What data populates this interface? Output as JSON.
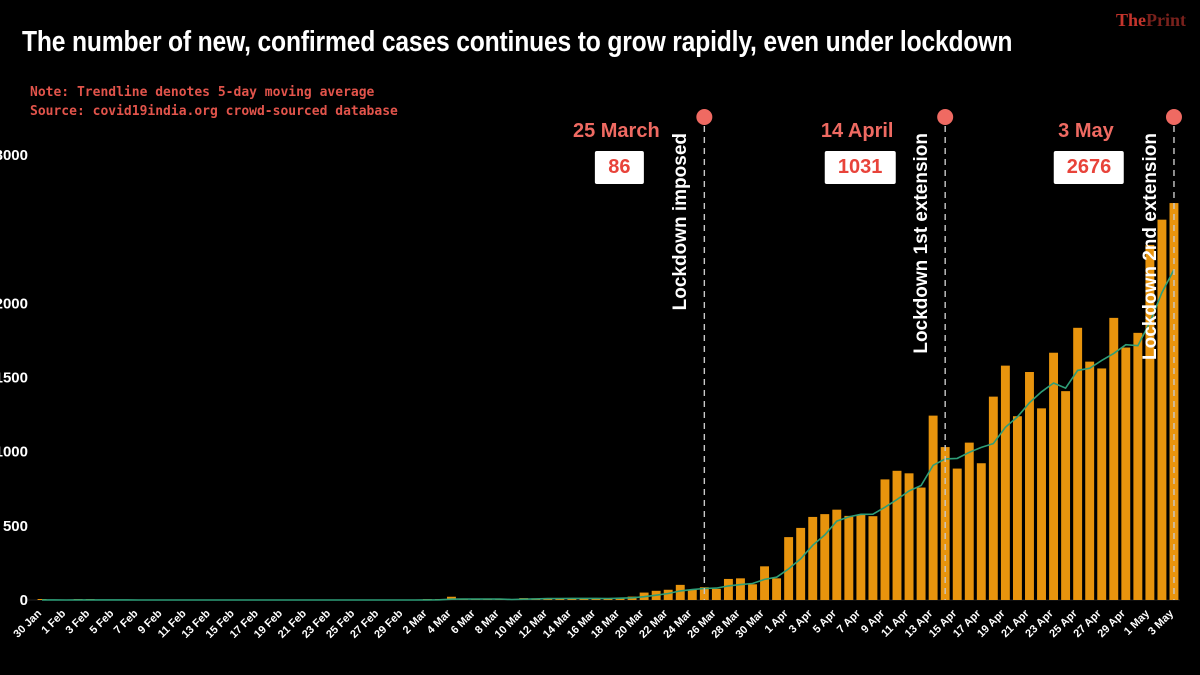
{
  "logo": {
    "part1": "The",
    "part2": "Print"
  },
  "header": {
    "note_line1": "Note: Trendline denotes 5-day moving average",
    "note_line2": "Source: covid19india.org crowd-sourced database"
  },
  "theme": {
    "background": "#000000",
    "text": "#ffffff",
    "accent_red": "#ef6a62",
    "value_red": "#e8433a",
    "note_red": "#e2544b",
    "logo_red": "#c4342c",
    "logo_dark_red": "#7a211c"
  },
  "chart_data": {
    "type": "bar",
    "title": "The number of new, confirmed cases continues to grow rapidly, even under lockdown",
    "xlabel": "",
    "ylabel": "",
    "ylim": [
      0,
      3000
    ],
    "grid": false,
    "legend": "none",
    "y_ticks": [
      3000,
      2000,
      1500,
      1000,
      500,
      0
    ],
    "x_tick_labels": [
      "30 Jan",
      "1 Feb",
      "3 Feb",
      "5 Feb",
      "7 Feb",
      "9 Feb",
      "11 Feb",
      "13 Feb",
      "15 Feb",
      "17 Feb",
      "19 Feb",
      "21 Feb",
      "23 Feb",
      "25 Feb",
      "27 Feb",
      "29 Feb",
      "2 Mar",
      "4 Mar",
      "6 Mar",
      "8 Mar",
      "10 Mar",
      "12 Mar",
      "14 Mar",
      "16 Mar",
      "18 Mar",
      "20 Mar",
      "22 Mar",
      "24 Mar",
      "26 Mar",
      "28 Mar",
      "30 Mar",
      "1 Apr",
      "3 Apr",
      "5 Apr",
      "7 Apr",
      "9 Apr",
      "11 Apr",
      "13 Apr",
      "15 Apr",
      "17 Apr",
      "19 Apr",
      "21 Apr",
      "23 Apr",
      "25 Apr",
      "27 Apr",
      "29 Apr",
      "1 May",
      "3 May"
    ],
    "dates": [
      "30 Jan",
      "31 Jan",
      "1 Feb",
      "2 Feb",
      "3 Feb",
      "4 Feb",
      "5 Feb",
      "6 Feb",
      "7 Feb",
      "8 Feb",
      "9 Feb",
      "10 Feb",
      "11 Feb",
      "12 Feb",
      "13 Feb",
      "14 Feb",
      "15 Feb",
      "16 Feb",
      "17 Feb",
      "18 Feb",
      "19 Feb",
      "20 Feb",
      "21 Feb",
      "22 Feb",
      "23 Feb",
      "24 Feb",
      "25 Feb",
      "26 Feb",
      "27 Feb",
      "28 Feb",
      "29 Feb",
      "1 Mar",
      "2 Mar",
      "3 Mar",
      "4 Mar",
      "5 Mar",
      "6 Mar",
      "7 Mar",
      "8 Mar",
      "9 Mar",
      "10 Mar",
      "11 Mar",
      "12 Mar",
      "13 Mar",
      "14 Mar",
      "15 Mar",
      "16 Mar",
      "17 Mar",
      "18 Mar",
      "19 Mar",
      "20 Mar",
      "21 Mar",
      "22 Mar",
      "23 Mar",
      "24 Mar",
      "25 Mar",
      "26 Mar",
      "27 Mar",
      "28 Mar",
      "29 Mar",
      "30 Mar",
      "31 Mar",
      "1 Apr",
      "2 Apr",
      "3 Apr",
      "4 Apr",
      "5 Apr",
      "6 Apr",
      "7 Apr",
      "8 Apr",
      "9 Apr",
      "10 Apr",
      "11 Apr",
      "12 Apr",
      "13 Apr",
      "14 Apr",
      "15 Apr",
      "16 Apr",
      "17 Apr",
      "18 Apr",
      "19 Apr",
      "20 Apr",
      "21 Apr",
      "22 Apr",
      "23 Apr",
      "24 Apr",
      "25 Apr",
      "26 Apr",
      "27 Apr",
      "28 Apr",
      "29 Apr",
      "30 Apr",
      "1 May",
      "2 May",
      "3 May"
    ],
    "values": [
      1,
      0,
      0,
      1,
      1,
      0,
      0,
      0,
      0,
      0,
      0,
      0,
      0,
      0,
      0,
      0,
      0,
      0,
      0,
      0,
      0,
      0,
      0,
      0,
      0,
      0,
      0,
      0,
      0,
      0,
      0,
      0,
      3,
      3,
      22,
      2,
      2,
      3,
      5,
      5,
      13,
      11,
      12,
      8,
      9,
      13,
      11,
      11,
      15,
      23,
      50,
      62,
      69,
      102,
      69,
      86,
      75,
      142,
      146,
      106,
      227,
      146,
      424,
      486,
      560,
      579,
      609,
      567,
      573,
      565,
      813,
      871,
      854,
      758,
      1243,
      1031,
      886,
      1061,
      922,
      1371,
      1580,
      1239,
      1537,
      1292,
      1667,
      1408,
      1835,
      1607,
      1561,
      1902,
      1702,
      1801,
      2394,
      2564,
      2676
    ],
    "trendline": {
      "description": "5-day moving average",
      "color": "#2e9e78"
    },
    "colors": {
      "bar": "#e8940d",
      "trendline": "#2e9e78",
      "annotation": "#ef6a62"
    },
    "annotations": [
      {
        "date": "25 March",
        "value": 86,
        "label": "Lockdown imposed",
        "day_index": 55
      },
      {
        "date": "14 April",
        "value": 1031,
        "label": "Lockdown 1st extension",
        "day_index": 75
      },
      {
        "date": "3 May",
        "value": 2676,
        "label": "Lockdown 2nd extension",
        "day_index": 94
      }
    ]
  }
}
